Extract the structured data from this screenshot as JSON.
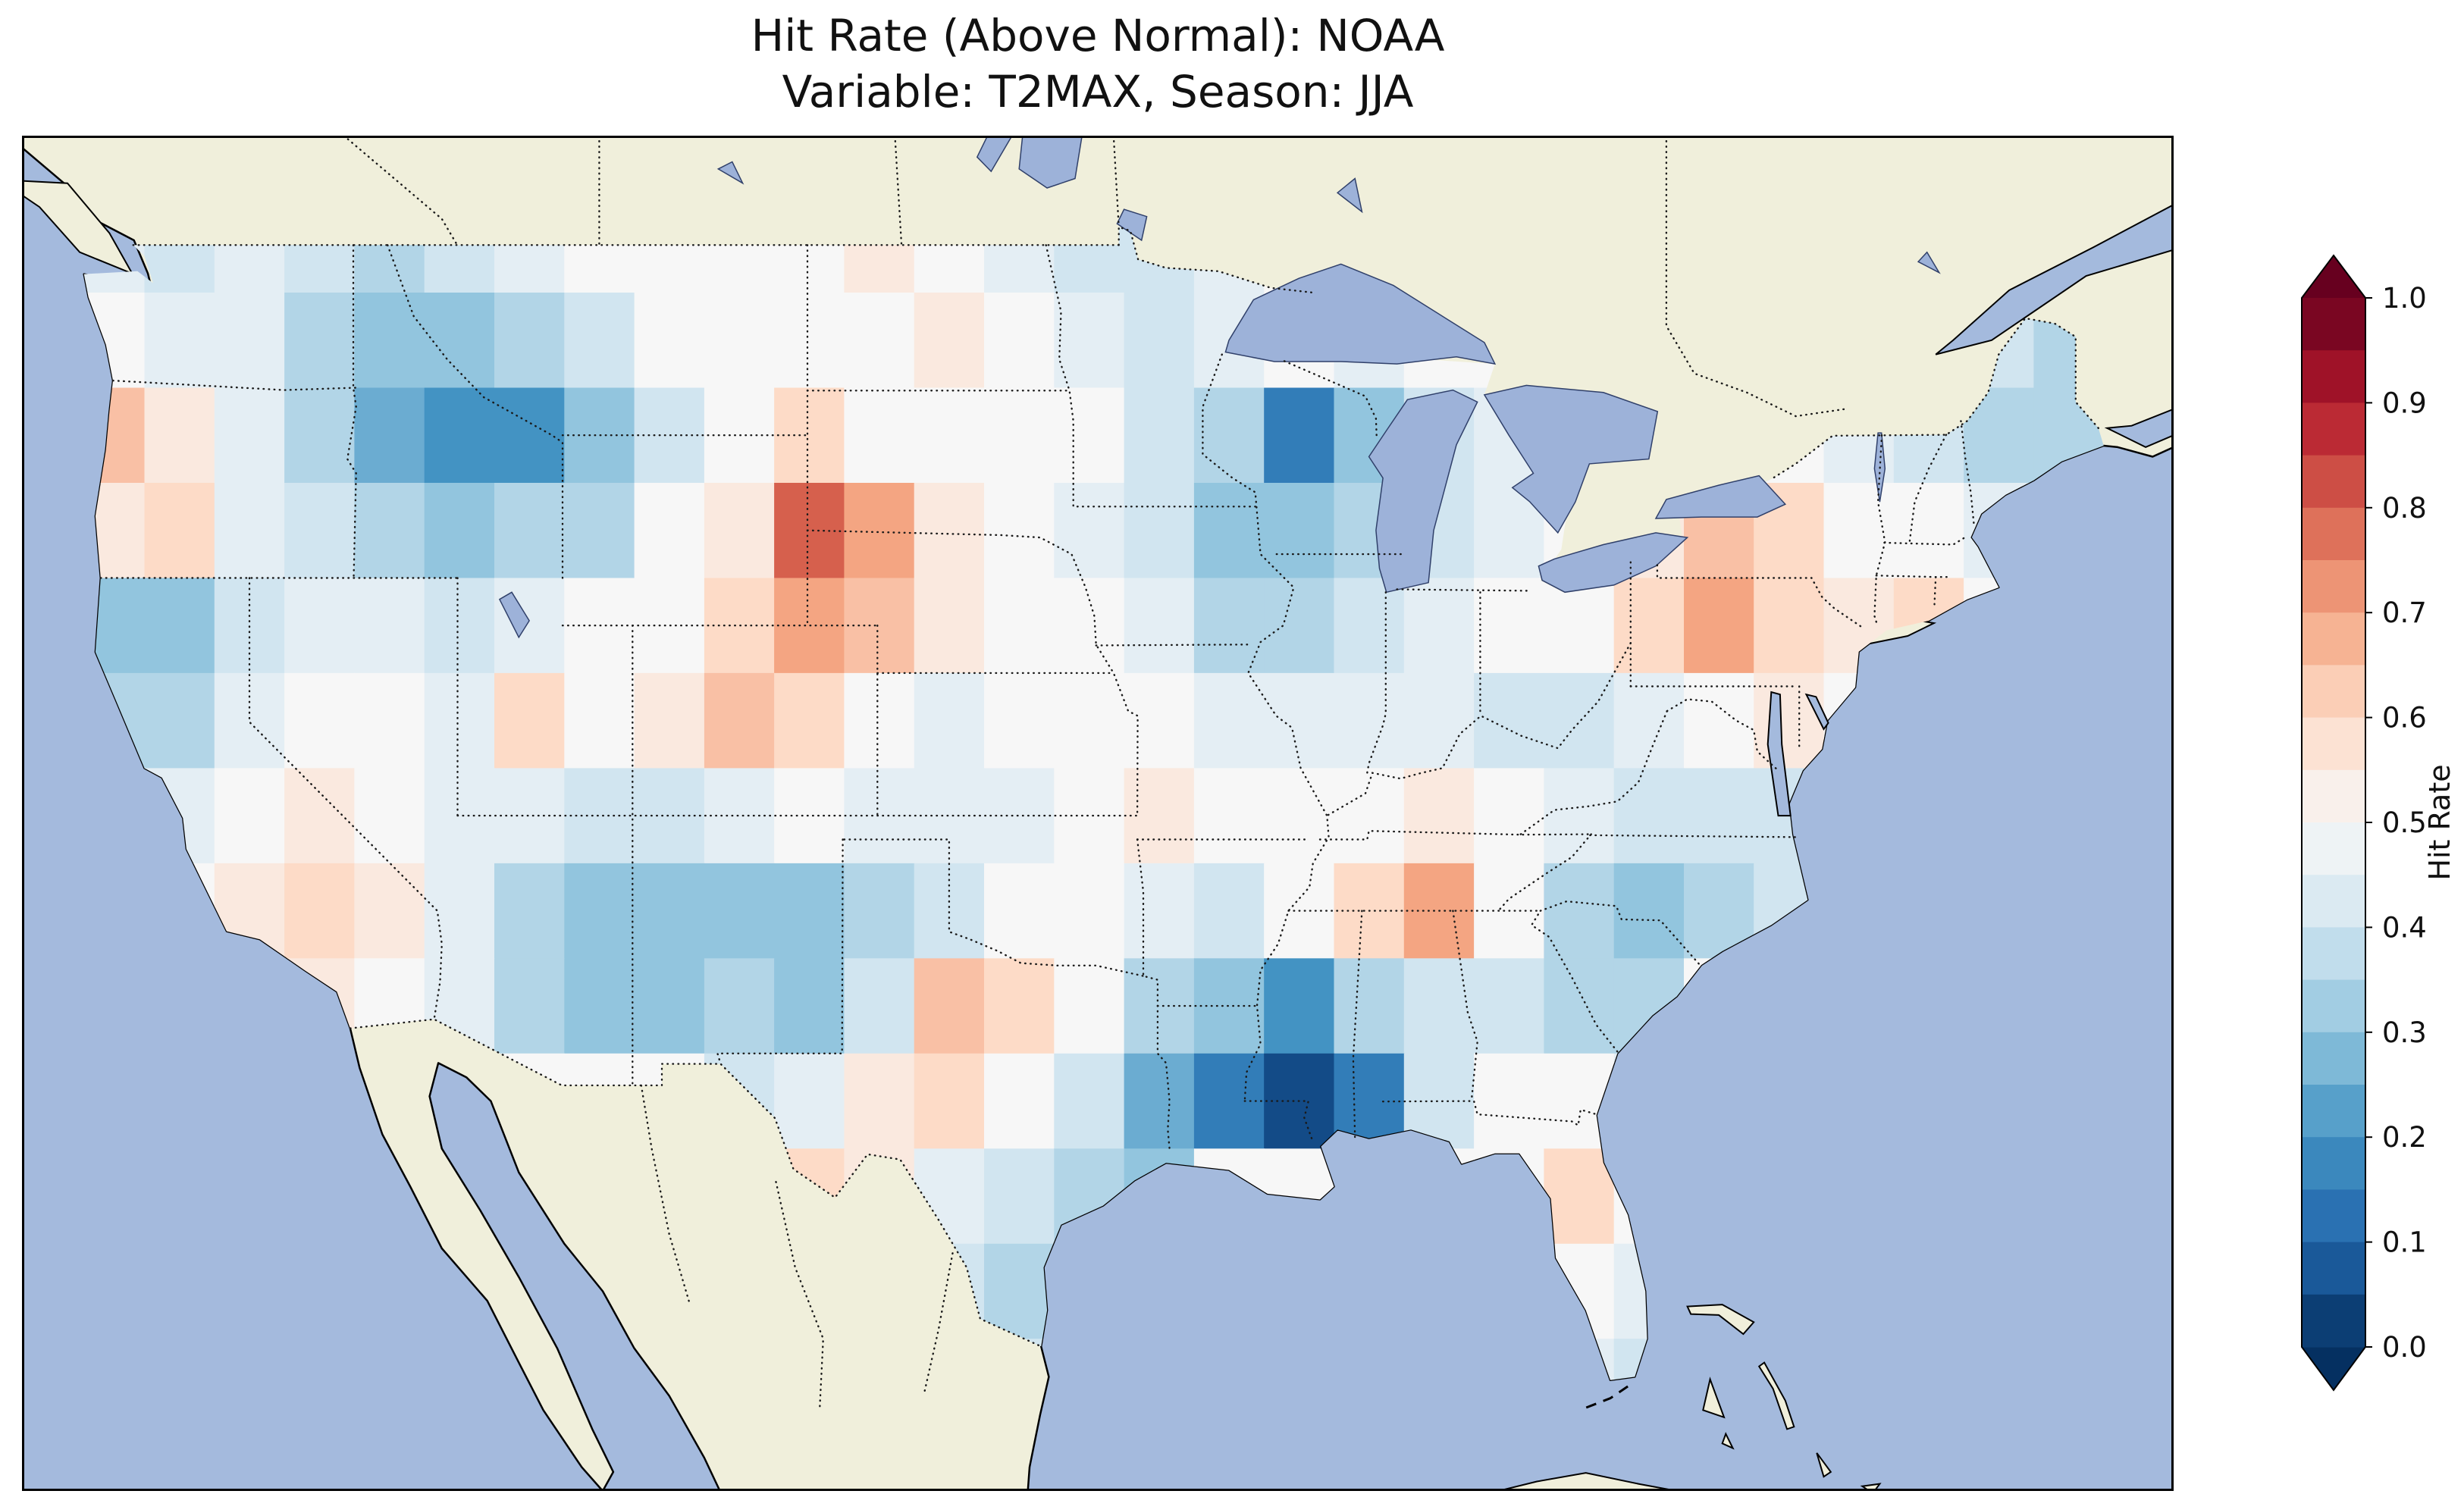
{
  "title": {
    "line1": "Hit Rate (Above Normal): NOAA",
    "line2": "Variable: T2MAX, Season: JJA"
  },
  "colorbar": {
    "label": "Hit Rate",
    "ticks": [
      "0.0",
      "0.1",
      "0.2",
      "0.3",
      "0.4",
      "0.5",
      "0.6",
      "0.7",
      "0.8",
      "0.9",
      "1.0"
    ],
    "min": 0.0,
    "max": 1.0,
    "extend": "both"
  },
  "colors": {
    "ocean": "#a4badd",
    "land": "#f0efdb",
    "lake": "#9db2d9",
    "coastline": "#000000",
    "border_dots": "#1a1a1a",
    "cmap_low": "#053061",
    "cmap_mid": "#f7f7f7",
    "cmap_high": "#67001f"
  },
  "chart_data": {
    "type": "heatmap",
    "title": "Hit Rate (Above Normal): NOAA",
    "subtitle": "Variable: T2MAX, Season: JJA",
    "variable": "T2MAX",
    "season": "JJA",
    "source": "NOAA",
    "colormap": "RdBu_r",
    "colorbar_label": "Hit Rate",
    "range": [
      0.0,
      1.0
    ],
    "projection": "lonlat",
    "extent": {
      "lon_min": -126.5,
      "lon_max": -65.0,
      "lat_min": 22.8,
      "lat_max": 51.3
    },
    "grid": {
      "lon_start": -125,
      "lat_start": 50,
      "cell_deg": 2,
      "cols": 30,
      "rows": 13,
      "note": "values[r][c] = hit rate for cell centered at lon -124+2c, lat 49-2r, masked to CONUS"
    },
    "values": [
      [
        0.45,
        0.4,
        0.45,
        0.4,
        0.35,
        0.4,
        0.45,
        0.5,
        0.5,
        0.5,
        0.5,
        0.55,
        0.5,
        0.45,
        0.4,
        0.4,
        0.45,
        0.5,
        0.5,
        0.5,
        0.5,
        0.5,
        0.5,
        0.5,
        0.5,
        0.5,
        0.5,
        0.5,
        0.5,
        0.5
      ],
      [
        0.5,
        0.45,
        0.45,
        0.35,
        0.3,
        0.3,
        0.35,
        0.4,
        0.5,
        0.5,
        0.5,
        0.5,
        0.55,
        0.5,
        0.45,
        0.4,
        0.45,
        0.5,
        0.45,
        0.5,
        0.5,
        0.5,
        0.5,
        0.5,
        0.5,
        0.45,
        0.4,
        0.4,
        0.35,
        0.4
      ],
      [
        0.65,
        0.55,
        0.45,
        0.35,
        0.25,
        0.2,
        0.2,
        0.3,
        0.4,
        0.5,
        0.6,
        0.5,
        0.5,
        0.5,
        0.5,
        0.4,
        0.35,
        0.15,
        0.3,
        0.4,
        0.45,
        0.5,
        0.5,
        0.5,
        0.5,
        0.45,
        0.4,
        0.35,
        0.35,
        0.4
      ],
      [
        0.55,
        0.6,
        0.45,
        0.4,
        0.35,
        0.3,
        0.35,
        0.35,
        0.5,
        0.55,
        0.8,
        0.7,
        0.55,
        0.5,
        0.45,
        0.4,
        0.3,
        0.3,
        0.35,
        0.4,
        0.45,
        0.5,
        0.55,
        0.65,
        0.6,
        0.5,
        0.5,
        0.45,
        0.4,
        0.4
      ],
      [
        0.3,
        0.3,
        0.4,
        0.45,
        0.45,
        0.4,
        0.45,
        0.5,
        0.5,
        0.6,
        0.7,
        0.65,
        0.55,
        0.5,
        0.5,
        0.45,
        0.35,
        0.35,
        0.4,
        0.45,
        0.5,
        0.5,
        0.6,
        0.7,
        0.6,
        0.55,
        0.6,
        0.5,
        0.45,
        0.45
      ],
      [
        0.35,
        0.35,
        0.45,
        0.5,
        0.5,
        0.45,
        0.6,
        0.5,
        0.55,
        0.65,
        0.6,
        0.5,
        0.45,
        0.5,
        0.5,
        0.5,
        0.45,
        0.45,
        0.45,
        0.45,
        0.4,
        0.4,
        0.45,
        0.5,
        0.55,
        0.5,
        0.5,
        0.45,
        0.5,
        0.5
      ],
      [
        0.4,
        0.45,
        0.5,
        0.55,
        0.5,
        0.45,
        0.45,
        0.4,
        0.4,
        0.45,
        0.5,
        0.45,
        0.45,
        0.45,
        0.5,
        0.55,
        0.5,
        0.5,
        0.5,
        0.55,
        0.5,
        0.45,
        0.4,
        0.4,
        0.4,
        0.45,
        0.5,
        0.5,
        0.5,
        0.5
      ],
      [
        0.5,
        0.5,
        0.55,
        0.6,
        0.55,
        0.45,
        0.35,
        0.3,
        0.3,
        0.3,
        0.3,
        0.35,
        0.4,
        0.5,
        0.5,
        0.45,
        0.4,
        0.5,
        0.6,
        0.7,
        0.5,
        0.35,
        0.3,
        0.35,
        0.4,
        0.5,
        0.5,
        0.5,
        0.5,
        0.5
      ],
      [
        0.5,
        0.5,
        0.5,
        0.55,
        0.5,
        0.45,
        0.35,
        0.3,
        0.3,
        0.35,
        0.3,
        0.4,
        0.65,
        0.6,
        0.5,
        0.35,
        0.3,
        0.2,
        0.35,
        0.4,
        0.4,
        0.35,
        0.35,
        0.5,
        0.5,
        0.5,
        0.5,
        0.5,
        0.5,
        0.5
      ],
      [
        0.5,
        0.5,
        0.5,
        0.5,
        0.5,
        0.5,
        0.5,
        0.5,
        0.5,
        0.4,
        0.45,
        0.55,
        0.6,
        0.5,
        0.4,
        0.25,
        0.15,
        0.05,
        0.15,
        0.4,
        0.5,
        0.5,
        0.45,
        0.5,
        0.5,
        0.5,
        0.5,
        0.5,
        0.5,
        0.5
      ],
      [
        0.5,
        0.5,
        0.5,
        0.5,
        0.5,
        0.5,
        0.5,
        0.5,
        0.5,
        0.5,
        0.6,
        0.55,
        0.45,
        0.4,
        0.35,
        0.3,
        0.5,
        0.5,
        0.5,
        0.5,
        0.5,
        0.6,
        0.5,
        0.5,
        0.5,
        0.5,
        0.5,
        0.5,
        0.5,
        0.5
      ],
      [
        0.5,
        0.5,
        0.5,
        0.5,
        0.5,
        0.5,
        0.5,
        0.5,
        0.5,
        0.5,
        0.5,
        0.5,
        0.4,
        0.35,
        0.4,
        0.5,
        0.5,
        0.5,
        0.5,
        0.5,
        0.5,
        0.5,
        0.45,
        0.5,
        0.5,
        0.5,
        0.5,
        0.5,
        0.5,
        0.5
      ],
      [
        0.5,
        0.5,
        0.5,
        0.5,
        0.5,
        0.5,
        0.5,
        0.5,
        0.5,
        0.5,
        0.5,
        0.5,
        0.5,
        0.4,
        0.5,
        0.5,
        0.5,
        0.5,
        0.5,
        0.5,
        0.5,
        0.45,
        0.4,
        0.5,
        0.5,
        0.5,
        0.5,
        0.5,
        0.5,
        0.5
      ]
    ]
  }
}
